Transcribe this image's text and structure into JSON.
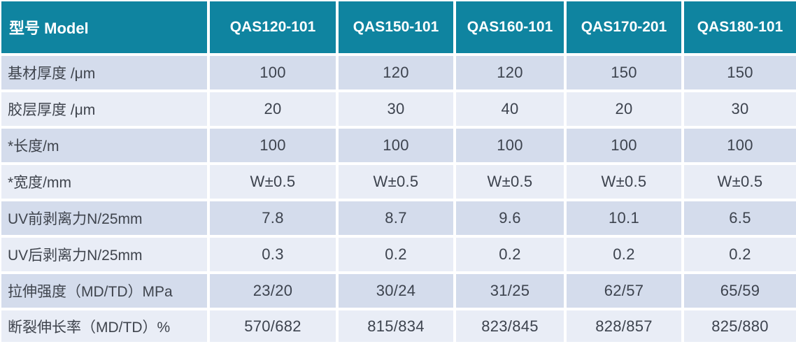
{
  "table": {
    "header": {
      "model_label": "型号 Model",
      "columns": [
        "QAS120-101",
        "QAS150-101",
        "QAS160-101",
        "QAS170-201",
        "QAS180-101"
      ]
    },
    "rows": [
      {
        "label": "基材厚度  /μm",
        "values": [
          "100",
          "120",
          "120",
          "150",
          "150"
        ]
      },
      {
        "label": "胶层厚度 /μm",
        "values": [
          "20",
          "30",
          "40",
          "20",
          "30"
        ]
      },
      {
        "label": "*长度/m",
        "values": [
          "100",
          "100",
          "100",
          "100",
          "100"
        ]
      },
      {
        "label": "*宽度/mm",
        "values": [
          "W±0.5",
          "W±0.5",
          "W±0.5",
          "W±0.5",
          "W±0.5"
        ]
      },
      {
        "label": "UV前剥离力N/25mm",
        "values": [
          "7.8",
          "8.7",
          "9.6",
          "10.1",
          "6.5"
        ]
      },
      {
        "label": "UV后剥离力N/25mm",
        "values": [
          "0.3",
          "0.2",
          "0.2",
          "0.2",
          "0.2"
        ]
      },
      {
        "label": "拉伸强度（MD/TD）MPa",
        "values": [
          "23/20",
          "30/24",
          "31/25",
          "62/57",
          "65/59"
        ]
      },
      {
        "label": "断裂伸长率（MD/TD）%",
        "values": [
          "570/682",
          "815/834",
          "823/845",
          "828/857",
          "825/880"
        ]
      }
    ]
  },
  "colors": {
    "header_bg": "#0f84a0",
    "header_text": "#ffffff",
    "row_odd_bg": "#d4dcec",
    "row_even_bg": "#e9edf6",
    "cell_text": "#3d434e",
    "separator": "#ffffff"
  }
}
